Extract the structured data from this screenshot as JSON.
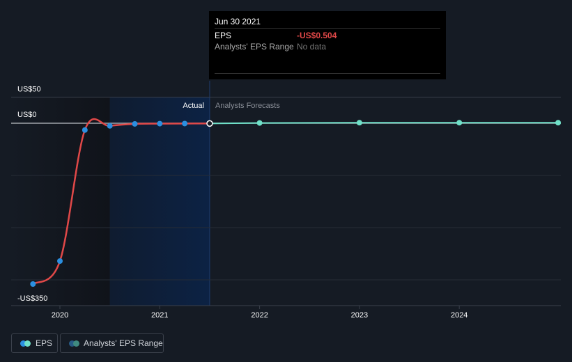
{
  "tooltip": {
    "date": "Jun 30 2021",
    "eps_label": "EPS",
    "eps_value": "-US$0.504",
    "range_label": "Analysts' EPS Range",
    "range_value": "No data"
  },
  "labels": {
    "actual": "Actual",
    "forecast": "Analysts Forecasts"
  },
  "legend": {
    "eps": "EPS",
    "range": "Analysts' EPS Range"
  },
  "colors": {
    "actual_line": "#e04848",
    "actual_point": "#2b8fe0",
    "forecast": "#6fe0c8",
    "bg": "#151b24"
  },
  "chart_data": {
    "type": "line",
    "ylim": [
      -348,
      50
    ],
    "y_ticks": [
      {
        "v": 50,
        "label": "US$50"
      },
      {
        "v": 0,
        "label": "US$0"
      },
      {
        "v": -350,
        "label": "-US$350"
      }
    ],
    "x_ticks": [
      2020,
      2021,
      2022,
      2023,
      2024
    ],
    "actual": {
      "name": "EPS",
      "x": [
        2019.73,
        2020.0,
        2020.25,
        2020.5,
        2020.75,
        2021.0,
        2021.25,
        2021.5
      ],
      "y": [
        -308,
        -264,
        -13,
        -5,
        -1.3,
        -0.8,
        -0.6,
        -0.504
      ]
    },
    "forecast": {
      "name": "EPS forecast",
      "x": [
        2021.5,
        2022,
        2023,
        2024,
        2024.99
      ],
      "y": [
        -0.504,
        0.5,
        1,
        1,
        1
      ]
    }
  }
}
